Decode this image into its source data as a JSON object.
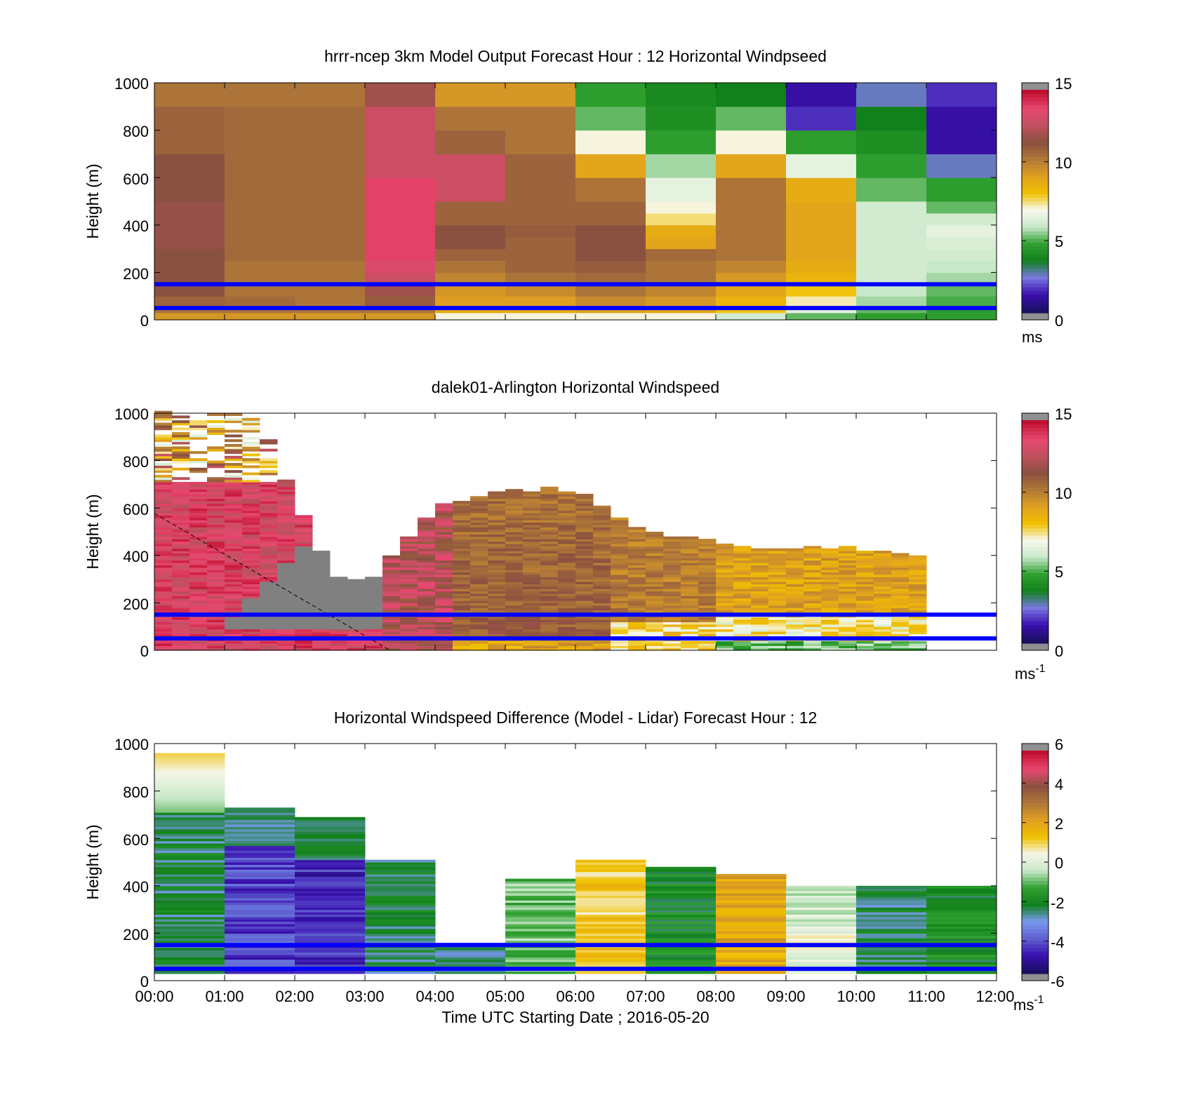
{
  "figure": {
    "xlabel": "Time UTC  Starting Date ; 2016-05-20",
    "x_ticks": [
      "00:00",
      "01:00",
      "02:00",
      "03:00",
      "04:00",
      "05:00",
      "06:00",
      "07:00",
      "08:00",
      "09:00",
      "10:00",
      "11:00",
      "12:00"
    ]
  },
  "colormaps": {
    "speed": [
      "#1a1060",
      "#3a10b0",
      "#7878e0",
      "#10801a",
      "#30a030",
      "#c8e8c8",
      "#f8f8ee",
      "#f0c000",
      "#e0a020",
      "#b07838",
      "#8a5040",
      "#c05060",
      "#e84870",
      "#c01030"
    ],
    "diff": [
      "#1a1060",
      "#3a10b0",
      "#6060d0",
      "#7a9af0",
      "#10801a",
      "#30a030",
      "#c8e8c8",
      "#f5f5e8",
      "#f0c000",
      "#e0a020",
      "#b07838",
      "#8a5040",
      "#e84870",
      "#c01030"
    ]
  },
  "chart_data": [
    {
      "type": "heatmap",
      "title": "hrrr-ncep 3km Model Output   Forecast Hour : 12 Horizontal Windpseed",
      "ylabel": "Height (m)",
      "xlim": [
        0,
        12
      ],
      "ylim": [
        0,
        1000
      ],
      "y_ticks": [
        0,
        200,
        400,
        600,
        800,
        1000
      ],
      "colorbar": {
        "range": [
          0,
          15
        ],
        "ticks": [
          0,
          5,
          10,
          15
        ],
        "unit": "ms"
      },
      "reference_lines_height_m": [
        150,
        50
      ],
      "height_edges_m": [
        0,
        30,
        60,
        100,
        150,
        200,
        250,
        300,
        350,
        400,
        450,
        500,
        600,
        700,
        800,
        900,
        1000
      ],
      "x_hours": [
        0,
        1,
        2,
        3,
        4,
        5,
        6,
        7,
        8,
        9,
        10,
        11
      ],
      "values": [
        [
          9.5,
          9.5,
          9.5,
          9.5,
          7.0,
          7.0,
          7.0,
          7.0,
          6.0,
          5.0,
          4.5,
          4.5
        ],
        [
          10.5,
          10.5,
          10.5,
          10.5,
          8.8,
          8.8,
          9.2,
          9.0,
          8.0,
          6.5,
          5.0,
          4.5
        ],
        [
          11.0,
          10.8,
          10.5,
          11.2,
          9.3,
          9.3,
          9.8,
          9.5,
          8.5,
          7.2,
          5.5,
          4.8
        ],
        [
          11.5,
          10.5,
          10.5,
          12.0,
          9.5,
          9.8,
          10.5,
          10.0,
          9.0,
          8.0,
          5.8,
          5.0
        ],
        [
          11.5,
          10.5,
          10.5,
          13.0,
          10.0,
          10.5,
          10.8,
          10.5,
          9.5,
          8.5,
          6.0,
          5.5
        ],
        [
          11.5,
          10.5,
          10.5,
          13.5,
          10.5,
          11.0,
          11.2,
          10.5,
          10.0,
          8.8,
          6.0,
          5.8
        ],
        [
          11.5,
          10.8,
          10.8,
          14.0,
          11.0,
          11.0,
          11.5,
          10.8,
          10.5,
          9.0,
          6.0,
          6.0
        ],
        [
          11.8,
          10.8,
          10.8,
          14.0,
          11.5,
          11.0,
          11.5,
          9.0,
          10.5,
          9.0,
          6.0,
          6.2
        ],
        [
          11.8,
          10.8,
          10.8,
          14.0,
          11.5,
          11.2,
          11.5,
          8.8,
          10.5,
          9.0,
          6.0,
          6.5
        ],
        [
          11.8,
          10.8,
          10.8,
          14.0,
          11.0,
          11.0,
          11.0,
          7.5,
          10.5,
          9.0,
          6.0,
          6.0
        ],
        [
          11.8,
          10.8,
          10.8,
          14.0,
          11.0,
          11.0,
          11.0,
          7.0,
          10.5,
          9.0,
          6.0,
          5.0
        ],
        [
          11.5,
          10.8,
          10.8,
          14.0,
          13.0,
          11.0,
          10.5,
          6.5,
          10.5,
          8.8,
          5.0,
          4.5
        ],
        [
          11.5,
          10.8,
          10.8,
          13.0,
          13.0,
          11.0,
          9.0,
          5.5,
          9.0,
          6.5,
          4.5,
          2.5
        ],
        [
          11.0,
          10.8,
          10.8,
          13.0,
          11.0,
          10.5,
          7.0,
          4.5,
          7.0,
          4.5,
          4.0,
          1.0
        ],
        [
          11.0,
          10.8,
          10.8,
          13.0,
          10.5,
          10.5,
          5.0,
          4.0,
          5.0,
          1.5,
          3.5,
          1.0
        ],
        [
          10.5,
          10.5,
          10.5,
          12.0,
          9.5,
          9.5,
          4.5,
          3.8,
          3.5,
          1.0,
          2.5,
          1.5
        ]
      ]
    },
    {
      "type": "heatmap",
      "title": "dalek01-Arlington  Horizontal Windspeed",
      "ylabel": "Height (m)",
      "xlim": [
        0,
        12
      ],
      "ylim": [
        0,
        1000
      ],
      "y_ticks": [
        0,
        200,
        400,
        600,
        800,
        1000
      ],
      "colorbar": {
        "range": [
          0,
          15
        ],
        "ticks": [
          0,
          5,
          10,
          15
        ],
        "unit": "ms",
        "unit_exponent": "-1"
      },
      "reference_lines_height_m": [
        150,
        50
      ],
      "profile_tops_m": [
        1000,
        1000,
        1000,
        960,
        640,
        330,
        270,
        600,
        680,
        670,
        500,
        450,
        430,
        430,
        380
      ],
      "profile_hours": [
        0,
        0.5,
        1,
        1.5,
        2,
        2.5,
        3,
        4,
        5,
        6,
        7,
        8,
        9,
        10,
        11
      ]
    },
    {
      "type": "heatmap",
      "title": "Horizontal Windspeed Difference (Model - Lidar) Forecast Hour : 12",
      "ylabel": "Height (m)",
      "xlim": [
        0,
        12
      ],
      "ylim": [
        0,
        1000
      ],
      "y_ticks": [
        0,
        200,
        400,
        600,
        800,
        1000
      ],
      "colorbar": {
        "range": [
          -6,
          6
        ],
        "ticks": [
          -6,
          -4,
          -2,
          0,
          2,
          4,
          6
        ],
        "unit": "ms",
        "unit_exponent": "-1"
      },
      "reference_lines_height_m": [
        150,
        50
      ],
      "x_hours": [
        0,
        1,
        2,
        3,
        4,
        5,
        6,
        7,
        8,
        9,
        10,
        11
      ],
      "column_tops_m": [
        960,
        730,
        690,
        505,
        160,
        430,
        505,
        480,
        450,
        400,
        400,
        400
      ],
      "base_values": [
        -2.5,
        -4.5,
        -4.8,
        -2.5,
        -2.8,
        -1.0,
        1.2,
        -2.0,
        2.0,
        0.2,
        -2.5,
        -2.0
      ]
    }
  ]
}
